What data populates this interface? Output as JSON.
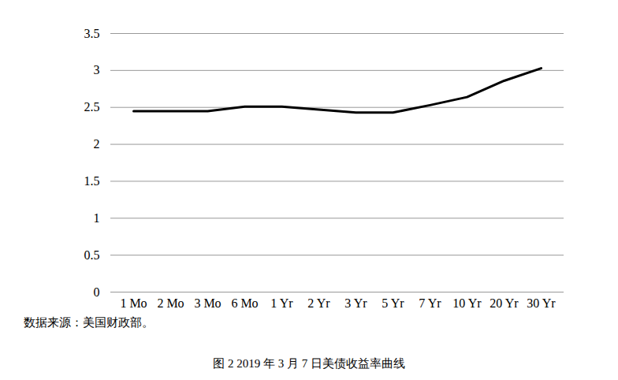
{
  "chart_data": {
    "type": "line",
    "title": "图 2 2019 年 3 月 7 日美债收益率曲线",
    "source": "数据来源：美国财政部。",
    "categories": [
      "1 Mo",
      "2 Mo",
      "3 Mo",
      "6 Mo",
      "1 Yr",
      "2 Yr",
      "3 Yr",
      "5 Yr",
      "7 Yr",
      "10 Yr",
      "20 Yr",
      "30 Yr"
    ],
    "values": [
      2.45,
      2.45,
      2.45,
      2.51,
      2.51,
      2.47,
      2.43,
      2.43,
      2.53,
      2.64,
      2.86,
      3.03
    ],
    "color": "#000000",
    "ylim": [
      0,
      3.5
    ],
    "yticks": [
      0,
      0.5,
      1,
      1.5,
      2,
      2.5,
      3,
      3.5
    ],
    "grid": true
  }
}
